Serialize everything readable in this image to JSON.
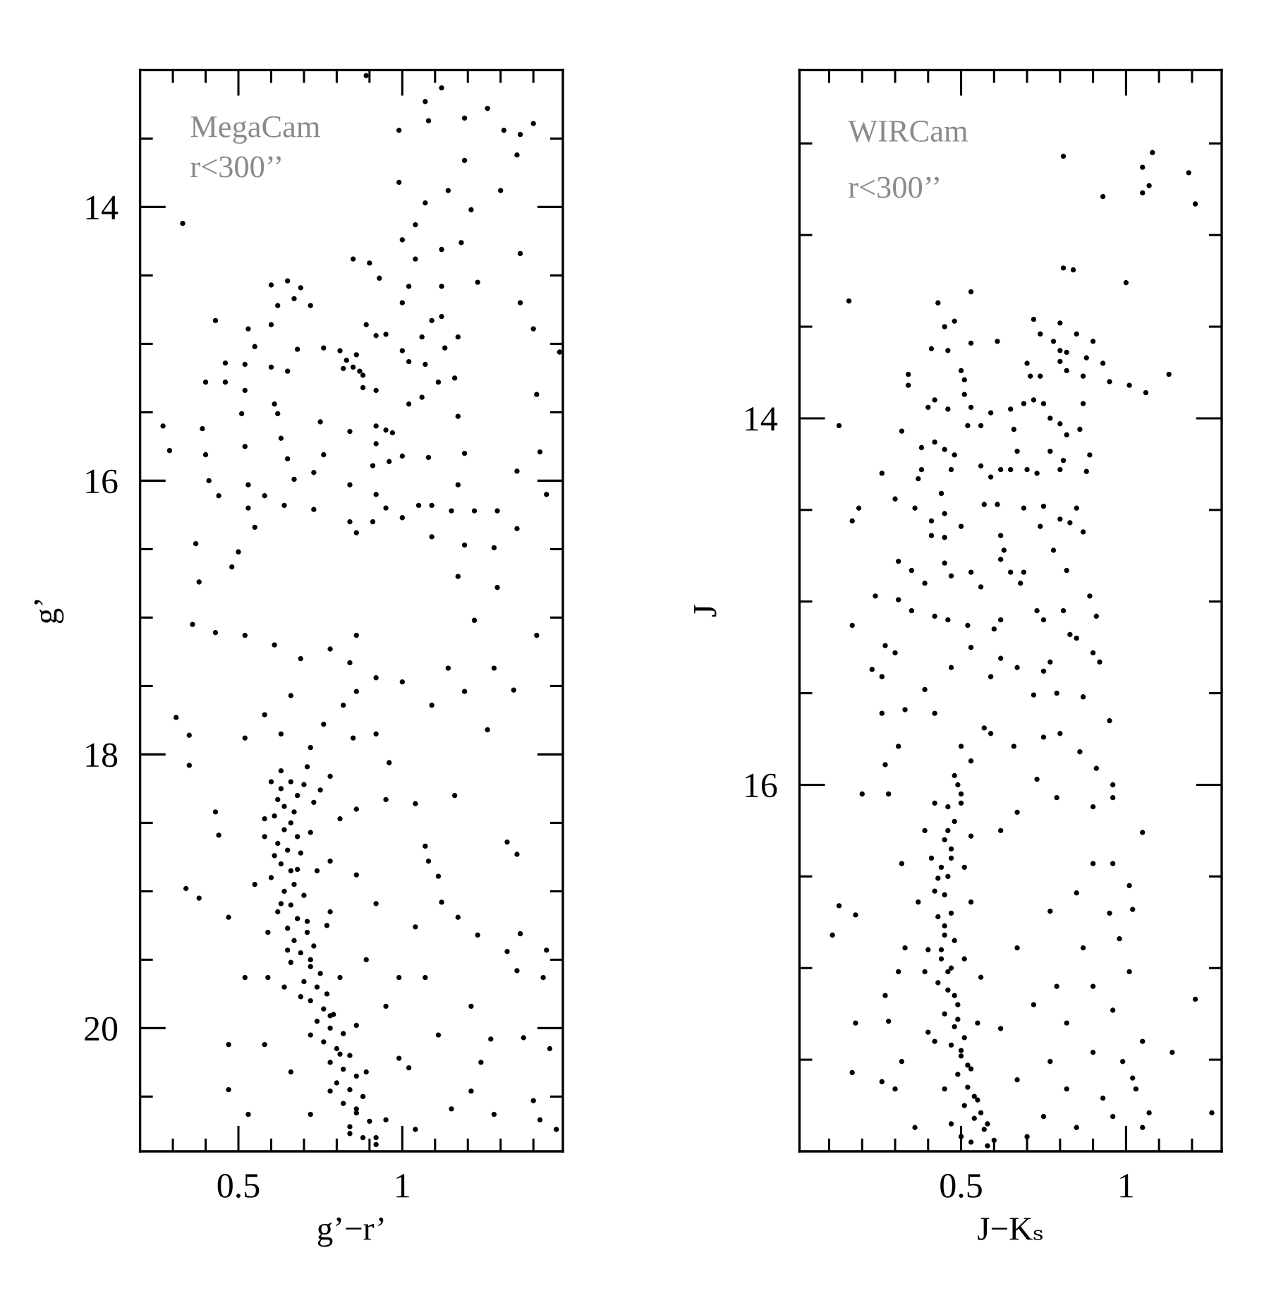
{
  "chart_data": [
    {
      "type": "scatter",
      "xlabel": "g’−r’",
      "ylabel": "g’",
      "annotations": [
        "MegaCam",
        "r<300’’"
      ],
      "marker": "circle",
      "xlim": [
        0.2,
        1.49
      ],
      "ylim": [
        20.9,
        13
      ],
      "xticks": [
        {
          "value": 0.3,
          "label": null
        },
        {
          "value": 0.4,
          "label": null
        },
        0.5,
        {
          "value": 0.6,
          "label": null
        },
        {
          "value": 0.7,
          "label": null
        },
        {
          "value": 0.8,
          "label": null
        },
        {
          "value": 0.9,
          "label": null
        },
        1,
        {
          "value": 1.1,
          "label": null
        },
        {
          "value": 1.2,
          "label": null
        },
        {
          "value": 1.3,
          "label": null
        },
        {
          "value": 1.4,
          "label": null
        }
      ],
      "yticks": [
        {
          "value": 13.5,
          "label": null
        },
        14,
        {
          "value": 14.5,
          "label": null
        },
        {
          "value": 15,
          "label": null
        },
        {
          "value": 15.5,
          "label": null
        },
        16,
        {
          "value": 16.5,
          "label": null
        },
        {
          "value": 17,
          "label": null
        },
        {
          "value": 17.5,
          "label": null
        },
        18,
        {
          "value": 18.5,
          "label": null
        },
        {
          "value": 19,
          "label": null
        },
        {
          "value": 19.5,
          "label": null
        },
        20,
        {
          "value": 20.5,
          "label": null
        }
      ],
      "series": [
        {
          "color": "#000000",
          "x": [
            0.33,
            0.89,
            1.12,
            1.07,
            1.26,
            1.31,
            1.36,
            1.4,
            0.99,
            1.08,
            1.19,
            1.35,
            1.19,
            0.99,
            1.14,
            1.3,
            1.21,
            1.07,
            1.04,
            1.0,
            1.18,
            1.12,
            1.36,
            0.85,
            0.9,
            1.04,
            0.93,
            1.23,
            1.12,
            0.6,
            0.65,
            0.69,
            0.67,
            0.62,
            0.72,
            1.02,
            1.36,
            1.0,
            1.12,
            0.43,
            0.53,
            0.6,
            0.55,
            0.68,
            0.89,
            0.92,
            0.95,
            1.0,
            1.06,
            1.09,
            1.17,
            1.4,
            1.48,
            0.81,
            0.83,
            0.85,
            0.87,
            0.88,
            0.82,
            0.86,
            0.76,
            1.02,
            1.07,
            1.13,
            0.46,
            0.52,
            0.6,
            0.65,
            0.4,
            0.46,
            0.52,
            1.16,
            1.11,
            0.88,
            0.92,
            1.02,
            1.06,
            1.41,
            0.61,
            0.51,
            0.62,
            0.75,
            0.95,
            0.92,
            0.97,
            1.17,
            0.27,
            0.29,
            0.39,
            0.63,
            0.84,
            0.92,
            0.96,
            0.91,
            1.0,
            0.4,
            0.52,
            0.65,
            0.76,
            1.08,
            1.19,
            1.42,
            1.35,
            0.41,
            0.44,
            0.53,
            0.58,
            0.67,
            0.73,
            0.84,
            0.92,
            0.95,
            0.91,
            1.17,
            1.44,
            0.53,
            0.55,
            0.64,
            0.73,
            1.05,
            1.09,
            1.15,
            1.22,
            1.29,
            1.0,
            1.09,
            1.35,
            0.37,
            0.5,
            0.84,
            0.86,
            1.28,
            1.19,
            0.38,
            0.48,
            1.29,
            1.17,
            0.36,
            0.43,
            1.22,
            1.41,
            0.31,
            0.35,
            0.35,
            0.34,
            0.38,
            0.43,
            0.44,
            0.47,
            0.47,
            0.47,
            1.34,
            1.26,
            1.32,
            1.35,
            1.36,
            1.32,
            1.44,
            1.23,
            1.16,
            1.17,
            1.35,
            1.43,
            1.37,
            1.45,
            1.27,
            1.24,
            1.4,
            1.42,
            1.47,
            1.28,
            1.15,
            1.21,
            1.07,
            1.08,
            1.04,
            0.95,
            1.0,
            1.09,
            1.19,
            1.14,
            1.28,
            1.11,
            1.12,
            1.04,
            0.99,
            1.07,
            1.11,
            1.02,
            1.21,
            0.52,
            0.61,
            0.69,
            0.78,
            0.84,
            0.86,
            0.92,
            0.82,
            0.86,
            0.66,
            0.58,
            0.52,
            0.63,
            0.76,
            0.85,
            0.92,
            0.96,
            0.72,
            0.63,
            0.71,
            0.78,
            0.75,
            0.62,
            0.58,
            0.66,
            0.72,
            0.81,
            0.86,
            0.61,
            0.68,
            0.78,
            0.86,
            0.55,
            0.63,
            0.71,
            0.78,
            0.92,
            0.65,
            0.72,
            0.81,
            0.59,
            0.89,
            0.69,
            0.78,
            0.86,
            0.95,
            0.72,
            0.81,
            0.89,
            0.99,
            0.66,
            0.78,
            0.86,
            0.95,
            0.72,
            0.84,
            0.92,
            1.04,
            0.53,
            0.58,
            0.52,
            0.66,
            0.7,
            0.63,
            0.68,
            0.64,
            0.67,
            0.61,
            0.64,
            0.68,
            0.62,
            0.65,
            0.69,
            0.63,
            0.66,
            0.6,
            0.67,
            0.64,
            0.7,
            0.66,
            0.62,
            0.68,
            0.65,
            0.71,
            0.67,
            0.73,
            0.69,
            0.66,
            0.72,
            0.75,
            0.7,
            0.74,
            0.77,
            0.72,
            0.76,
            0.79,
            0.74,
            0.78,
            0.82,
            0.76,
            0.8,
            0.84,
            0.78,
            0.82,
            0.86,
            0.8,
            0.84,
            0.88,
            0.82,
            0.86,
            0.9,
            0.84,
            0.88,
            0.92,
            0.6,
            0.73,
            0.58,
            0.74,
            0.59,
            0.77,
            0.64
          ],
          "values": [
            14.12,
            13.04,
            13.13,
            13.23,
            13.28,
            13.44,
            13.47,
            13.39,
            13.44,
            13.37,
            13.35,
            13.62,
            13.66,
            13.82,
            13.88,
            13.88,
            14.02,
            13.97,
            14.13,
            14.24,
            14.26,
            14.31,
            14.34,
            14.38,
            14.41,
            14.38,
            14.52,
            14.55,
            14.58,
            14.57,
            14.54,
            14.59,
            14.67,
            14.72,
            14.72,
            14.58,
            14.7,
            14.7,
            14.8,
            14.83,
            14.89,
            14.86,
            15.02,
            15.04,
            14.86,
            14.94,
            14.93,
            15.05,
            14.95,
            14.83,
            14.95,
            14.89,
            15.06,
            15.05,
            15.12,
            15.17,
            15.2,
            15.23,
            15.18,
            15.08,
            15.03,
            15.13,
            15.15,
            15.03,
            15.14,
            15.15,
            15.17,
            15.2,
            15.28,
            15.28,
            15.34,
            15.25,
            15.28,
            15.32,
            15.34,
            15.44,
            15.39,
            15.37,
            15.44,
            15.51,
            15.51,
            15.57,
            15.63,
            15.6,
            15.65,
            15.53,
            15.6,
            15.78,
            15.62,
            15.69,
            15.64,
            15.73,
            15.86,
            15.89,
            15.82,
            15.81,
            15.75,
            15.84,
            15.81,
            15.83,
            15.8,
            15.79,
            15.93,
            16.0,
            16.11,
            16.03,
            16.11,
            15.99,
            15.94,
            16.03,
            16.1,
            16.2,
            16.3,
            16.03,
            16.1,
            16.2,
            16.34,
            16.18,
            16.21,
            16.18,
            16.18,
            16.22,
            16.22,
            16.22,
            16.27,
            16.41,
            16.35,
            16.46,
            16.52,
            16.3,
            16.38,
            16.49,
            16.47,
            16.74,
            16.63,
            16.78,
            16.7,
            17.05,
            17.11,
            17.02,
            17.13,
            17.73,
            17.86,
            18.08,
            18.98,
            19.05,
            18.42,
            18.59,
            20.12,
            20.45,
            19.19,
            17.53,
            17.82,
            18.64,
            18.73,
            19.31,
            19.44,
            19.43,
            19.32,
            18.3,
            19.19,
            19.58,
            19.63,
            20.07,
            20.15,
            20.08,
            20.25,
            20.53,
            20.67,
            20.74,
            20.63,
            20.59,
            20.46,
            18.67,
            18.78,
            18.36,
            18.33,
            17.47,
            17.64,
            17.54,
            17.37,
            17.37,
            18.89,
            19.08,
            19.26,
            19.63,
            19.63,
            20.05,
            20.29,
            19.84,
            17.13,
            17.2,
            17.3,
            17.23,
            17.33,
            17.13,
            17.44,
            17.64,
            17.54,
            17.57,
            17.71,
            17.88,
            17.85,
            17.78,
            17.88,
            17.85,
            18.06,
            17.95,
            18.12,
            18.09,
            18.16,
            18.26,
            18.33,
            18.47,
            18.5,
            18.57,
            18.47,
            18.4,
            18.74,
            18.84,
            18.78,
            18.88,
            18.95,
            19.09,
            19.22,
            19.15,
            19.09,
            19.43,
            19.5,
            19.63,
            19.63,
            19.5,
            19.77,
            19.91,
            19.98,
            19.84,
            20.05,
            20.19,
            20.32,
            20.22,
            20.32,
            20.46,
            20.59,
            20.67,
            20.63,
            20.77,
            20.8,
            20.74,
            20.63,
            20.12,
            19.63,
            18.2,
            18.22,
            18.25,
            18.3,
            18.38,
            18.42,
            18.45,
            18.55,
            18.6,
            18.65,
            18.7,
            18.72,
            18.8,
            18.85,
            18.9,
            18.95,
            19.0,
            19.03,
            19.1,
            19.15,
            19.2,
            19.27,
            19.3,
            19.36,
            19.4,
            19.45,
            19.52,
            19.55,
            19.6,
            19.66,
            19.7,
            19.75,
            19.8,
            19.86,
            19.9,
            19.95,
            20.0,
            20.04,
            20.1,
            20.15,
            20.2,
            20.25,
            20.3,
            20.35,
            20.4,
            20.45,
            20.5,
            20.55,
            20.62,
            20.68,
            20.72,
            20.8,
            20.85,
            18.2,
            18.35,
            18.6,
            18.85,
            19.3,
            19.25,
            19.7
          ]
        }
      ]
    },
    {
      "type": "scatter",
      "xlabel": "J−Kₛ",
      "ylabel": "J",
      "annotations": [
        "WIRCam",
        "r<300’’"
      ],
      "marker": "circle",
      "xlim": [
        0.01,
        1.29
      ],
      "ylim": [
        18,
        12.1
      ],
      "xticks": [
        {
          "value": 0.1,
          "label": null
        },
        {
          "value": 0.2,
          "label": null
        },
        {
          "value": 0.3,
          "label": null
        },
        {
          "value": 0.4,
          "label": null
        },
        0.5,
        {
          "value": 0.6,
          "label": null
        },
        {
          "value": 0.7,
          "label": null
        },
        {
          "value": 0.8,
          "label": null
        },
        {
          "value": 0.9,
          "label": null
        },
        1,
        {
          "value": 1.1,
          "label": null
        },
        {
          "value": 1.2,
          "label": null
        }
      ],
      "yticks": [
        {
          "value": 12.5,
          "label": null
        },
        {
          "value": 13,
          "label": null
        },
        {
          "value": 13.5,
          "label": null
        },
        14,
        {
          "value": 14.5,
          "label": null
        },
        {
          "value": 15,
          "label": null
        },
        {
          "value": 15.5,
          "label": null
        },
        16,
        {
          "value": 16.5,
          "label": null
        },
        {
          "value": 17,
          "label": null
        },
        {
          "value": 17.5,
          "label": null
        }
      ],
      "series": [
        {
          "color": "#000000",
          "x": [
            0.81,
            1.08,
            1.05,
            1.07,
            1.05,
            1.19,
            1.21,
            0.93,
            0.81,
            0.84,
            1.0,
            0.16,
            0.43,
            0.53,
            0.45,
            0.48,
            0.41,
            0.46,
            0.53,
            0.61,
            0.72,
            0.8,
            0.74,
            0.78,
            0.8,
            0.82,
            0.85,
            0.9,
            0.8,
            0.88,
            0.93,
            0.95,
            1.01,
            1.06,
            1.13,
            0.7,
            0.71,
            0.74,
            0.82,
            0.87,
            0.34,
            0.34,
            0.5,
            0.51,
            0.4,
            0.42,
            0.46,
            0.51,
            0.53,
            0.59,
            0.52,
            0.56,
            0.65,
            0.69,
            0.72,
            0.75,
            0.77,
            0.8,
            0.82,
            0.86,
            0.87,
            0.13,
            0.32,
            0.66,
            0.67,
            0.65,
            0.38,
            0.42,
            0.45,
            0.48,
            0.26,
            0.38,
            0.37,
            0.47,
            0.56,
            0.59,
            0.62,
            0.7,
            0.73,
            0.8,
            0.88,
            0.81,
            0.89,
            0.77,
            0.3,
            0.36,
            0.19,
            0.17,
            0.44,
            0.45,
            0.41,
            0.57,
            0.61,
            0.69,
            0.75,
            0.85,
            0.8,
            0.83,
            0.87,
            0.41,
            0.45,
            0.5,
            0.62,
            0.63,
            0.74,
            0.78,
            0.31,
            0.35,
            0.39,
            0.45,
            0.47,
            0.53,
            0.56,
            0.62,
            0.65,
            0.68,
            0.69,
            0.82,
            0.24,
            0.31,
            0.35,
            0.89,
            0.91,
            0.81,
            0.17,
            0.73,
            0.75,
            0.62,
            0.42,
            0.46,
            0.52,
            0.83,
            0.85,
            0.23,
            0.26,
            0.27,
            0.3,
            0.26,
            0.31,
            0.27,
            0.28,
            0.2,
            0.32,
            0.33,
            0.39,
            0.42,
            0.47,
            0.53,
            0.59,
            0.62,
            0.6,
            0.67,
            0.72,
            0.75,
            0.77,
            0.9,
            0.92,
            0.79,
            0.87,
            0.95,
            0.57,
            0.59,
            0.5,
            0.53,
            0.66,
            0.75,
            0.8,
            0.86,
            0.91,
            0.96,
            1.05,
            0.96,
            0.9,
            0.79,
            0.73,
            0.67,
            0.62,
            0.49,
            0.46,
            0.43,
            0.45,
            0.46,
            0.49,
            0.52,
            0.56,
            0.6,
            0.39,
            0.53,
            0.37,
            0.53,
            0.39,
            0.56,
            0.4,
            0.62,
            0.45,
            0.67,
            0.5,
            0.7,
            0.36,
            0.67,
            0.77,
            0.85,
            0.9,
            0.96,
            1.01,
            1.02,
            0.95,
            0.87,
            0.98,
            1.01,
            0.79,
            0.9,
            0.96,
            0.72,
            0.82,
            1.05,
            0.99,
            0.9,
            0.77,
            1.02,
            1.03,
            1.07,
            0.93,
            0.82,
            0.85,
            0.96,
            0.75,
            1.05,
            1.26,
            1.21,
            1.14,
            0.13,
            0.11,
            0.18,
            0.18,
            0.17,
            0.28,
            0.27,
            0.32,
            0.3,
            0.26,
            0.33,
            0.31,
            0.47,
            0.44,
            0.48,
            0.5,
            0.54,
            0.58,
            0.42,
            0.5,
            0.48,
            0.5,
            0.46,
            0.48,
            0.45,
            0.47,
            0.44,
            0.46,
            0.42,
            0.45,
            0.47,
            0.43,
            0.45,
            0.48,
            0.44,
            0.47,
            0.43,
            0.46,
            0.49,
            0.45,
            0.48,
            0.51,
            0.47,
            0.5,
            0.53,
            0.49,
            0.52,
            0.55,
            0.51,
            0.54,
            0.57,
            0.53,
            0.58,
            0.41,
            0.51,
            0.4,
            0.51,
            0.42,
            0.55,
            0.47
          ],
          "values": [
            12.57,
            12.55,
            12.63,
            12.73,
            12.77,
            12.66,
            12.83,
            12.79,
            13.18,
            13.19,
            13.26,
            13.36,
            13.37,
            13.31,
            13.5,
            13.47,
            13.62,
            13.63,
            13.59,
            13.58,
            13.46,
            13.48,
            13.54,
            13.58,
            13.63,
            13.64,
            13.54,
            13.58,
            13.69,
            13.67,
            13.7,
            13.8,
            13.82,
            13.86,
            13.76,
            13.7,
            13.77,
            13.77,
            13.74,
            13.77,
            13.76,
            13.82,
            13.74,
            13.79,
            13.94,
            13.9,
            13.95,
            13.87,
            13.94,
            13.97,
            14.04,
            14.04,
            13.95,
            13.92,
            13.9,
            13.92,
            14.0,
            14.03,
            14.09,
            14.06,
            13.92,
            14.04,
            14.07,
            14.06,
            14.18,
            14.28,
            14.16,
            14.13,
            14.17,
            14.2,
            14.3,
            14.28,
            14.33,
            14.28,
            14.26,
            14.32,
            14.28,
            14.28,
            14.3,
            14.28,
            14.29,
            14.23,
            14.2,
            14.18,
            14.44,
            14.49,
            14.49,
            14.56,
            14.41,
            14.52,
            14.56,
            14.47,
            14.47,
            14.49,
            14.48,
            14.49,
            14.55,
            14.57,
            14.62,
            14.64,
            14.65,
            14.59,
            14.64,
            14.72,
            14.59,
            14.72,
            14.78,
            14.83,
            14.9,
            14.79,
            14.86,
            14.84,
            14.92,
            14.77,
            14.84,
            14.9,
            14.84,
            14.83,
            14.97,
            14.99,
            15.05,
            14.97,
            15.08,
            15.05,
            15.13,
            15.05,
            15.1,
            15.1,
            15.08,
            15.1,
            15.13,
            15.18,
            15.2,
            15.37,
            15.41,
            15.24,
            15.28,
            15.61,
            15.79,
            15.89,
            16.05,
            16.05,
            16.43,
            15.59,
            15.48,
            15.61,
            15.36,
            15.25,
            15.41,
            15.31,
            15.15,
            15.36,
            15.51,
            15.38,
            15.33,
            15.28,
            15.33,
            15.5,
            15.52,
            15.65,
            15.69,
            15.72,
            15.79,
            15.87,
            15.79,
            15.74,
            15.72,
            15.82,
            15.91,
            16.0,
            16.26,
            16.07,
            16.12,
            16.07,
            15.97,
            16.15,
            16.25,
            16.0,
            16.25,
            16.51,
            16.77,
            17.02,
            17.28,
            17.53,
            17.79,
            17.94,
            16.25,
            16.28,
            16.64,
            16.64,
            17.02,
            17.05,
            17.35,
            17.33,
            17.66,
            17.61,
            17.92,
            17.92,
            17.87,
            16.89,
            16.69,
            16.59,
            16.43,
            16.43,
            16.55,
            16.68,
            16.7,
            16.89,
            16.84,
            17.02,
            17.1,
            17.1,
            17.23,
            17.2,
            17.3,
            17.4,
            17.51,
            17.46,
            17.51,
            17.6,
            17.66,
            17.79,
            17.71,
            17.66,
            17.87,
            17.81,
            17.81,
            17.87,
            17.79,
            17.17,
            17.46,
            16.66,
            16.82,
            16.71,
            17.3,
            17.57,
            17.29,
            17.15,
            17.51,
            17.66,
            17.62,
            16.89,
            17.02,
            16.4,
            16.9,
            17.15,
            17.45,
            17.7,
            17.85,
            16.1,
            16.1,
            15.95,
            16.05,
            16.12,
            16.2,
            16.3,
            16.35,
            16.45,
            16.5,
            16.58,
            16.6,
            16.7,
            16.72,
            16.82,
            16.85,
            16.95,
            17.0,
            17.08,
            17.12,
            17.2,
            17.25,
            17.32,
            17.38,
            17.42,
            17.48,
            17.55,
            17.58,
            17.65,
            17.72,
            17.75,
            17.82,
            17.88,
            17.95,
            17.97,
            16.4,
            16.45,
            16.9,
            16.95,
            17.4,
            17.3,
            17.85
          ]
        }
      ]
    }
  ]
}
